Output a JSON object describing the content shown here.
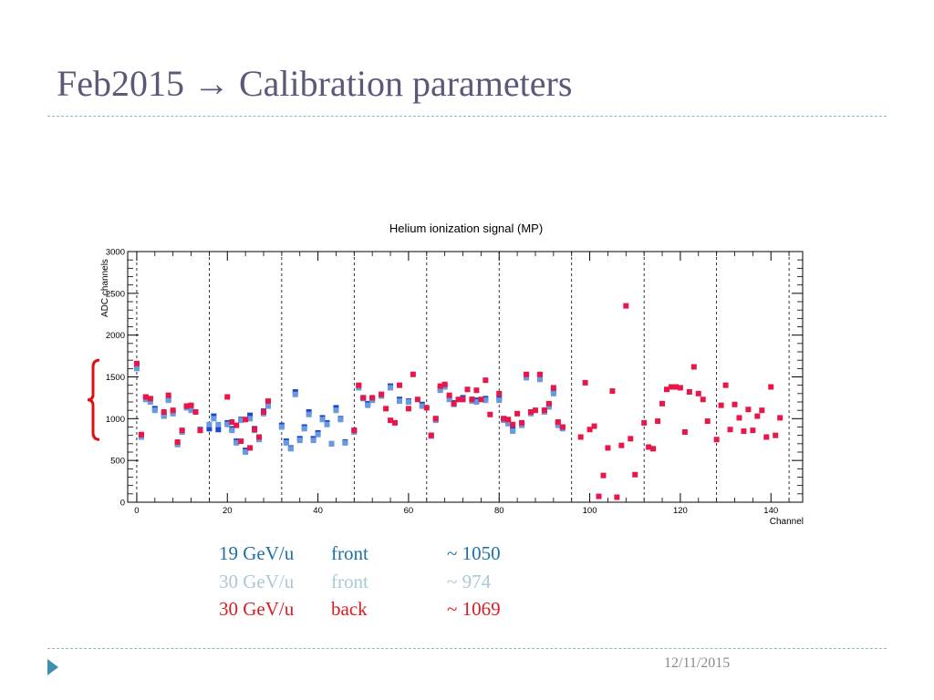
{
  "slide": {
    "title": "Feb2015 → Calibration parameters",
    "date": "12/11/2015"
  },
  "legend": [
    {
      "energy": "19 GeV/u",
      "side": "front",
      "value": "~ 1050",
      "color": "#1e6fa8"
    },
    {
      "energy": "30 GeV/u",
      "side": "front",
      "value": "~ 974",
      "color": "#a9c9d6"
    },
    {
      "energy": "30 GeV/u",
      "side": "back",
      "value": "~ 1069",
      "color": "#dd1a22"
    }
  ],
  "chart_data": {
    "type": "scatter",
    "title": "Helium ionization signal (MP)",
    "xlabel": "Channel",
    "ylabel": "ADC channels",
    "xlim": [
      -2,
      147
    ],
    "ylim": [
      0,
      3000
    ],
    "x_ticks": [
      0,
      20,
      40,
      60,
      80,
      100,
      120,
      140
    ],
    "y_ticks": [
      0,
      500,
      1000,
      1500,
      2000,
      2500,
      3000
    ],
    "dashed_vlines": [
      0,
      16,
      32,
      48,
      64,
      80,
      96,
      112,
      128,
      144
    ],
    "bracket_range": [
      750,
      1700
    ],
    "series": [
      {
        "color": "#1c46cc",
        "points": [
          [
            0,
            1650
          ],
          [
            1,
            800
          ],
          [
            2,
            1250
          ],
          [
            3,
            1230
          ],
          [
            4,
            1120
          ],
          [
            6,
            1050
          ],
          [
            7,
            1240
          ],
          [
            8,
            1080
          ],
          [
            9,
            700
          ],
          [
            10,
            850
          ],
          [
            11,
            1150
          ],
          [
            12,
            1130
          ],
          [
            14,
            870
          ],
          [
            16,
            880
          ],
          [
            17,
            1030
          ],
          [
            18,
            870
          ],
          [
            20,
            950
          ],
          [
            21,
            880
          ],
          [
            22,
            730
          ],
          [
            23,
            990
          ],
          [
            24,
            620
          ],
          [
            25,
            1040
          ],
          [
            26,
            880
          ],
          [
            27,
            770
          ],
          [
            28,
            1090
          ],
          [
            29,
            1190
          ],
          [
            32,
            920
          ],
          [
            33,
            730
          ],
          [
            34,
            650
          ],
          [
            35,
            1320
          ],
          [
            36,
            760
          ],
          [
            37,
            900
          ],
          [
            38,
            1080
          ],
          [
            39,
            760
          ],
          [
            40,
            830
          ],
          [
            41,
            1010
          ],
          [
            42,
            950
          ],
          [
            43,
            700
          ],
          [
            44,
            1130
          ],
          [
            45,
            1000
          ],
          [
            46,
            720
          ],
          [
            48,
            860
          ],
          [
            49,
            1390
          ],
          [
            50,
            1250
          ],
          [
            51,
            1180
          ],
          [
            52,
            1240
          ],
          [
            54,
            1290
          ],
          [
            56,
            1390
          ],
          [
            58,
            1230
          ],
          [
            60,
            1210
          ],
          [
            63,
            1170
          ],
          [
            65,
            800
          ],
          [
            66,
            1000
          ],
          [
            67,
            1360
          ],
          [
            68,
            1400
          ],
          [
            69,
            1250
          ],
          [
            70,
            1190
          ],
          [
            72,
            1250
          ],
          [
            74,
            1230
          ],
          [
            75,
            1220
          ],
          [
            77,
            1240
          ],
          [
            80,
            1250
          ],
          [
            81,
            1000
          ],
          [
            82,
            960
          ],
          [
            83,
            870
          ],
          [
            85,
            940
          ],
          [
            86,
            1520
          ],
          [
            87,
            1080
          ],
          [
            89,
            1500
          ],
          [
            90,
            1100
          ],
          [
            91,
            1160
          ],
          [
            92,
            1330
          ],
          [
            93,
            940
          ],
          [
            94,
            900
          ]
        ]
      },
      {
        "color": "#6a9ade",
        "points": [
          [
            0,
            1600
          ],
          [
            1,
            780
          ],
          [
            2,
            1230
          ],
          [
            3,
            1200
          ],
          [
            4,
            1100
          ],
          [
            6,
            1030
          ],
          [
            7,
            1220
          ],
          [
            8,
            1060
          ],
          [
            9,
            690
          ],
          [
            10,
            840
          ],
          [
            11,
            1130
          ],
          [
            12,
            1100
          ],
          [
            14,
            860
          ],
          [
            16,
            930
          ],
          [
            17,
            1000
          ],
          [
            18,
            930
          ],
          [
            20,
            930
          ],
          [
            21,
            860
          ],
          [
            22,
            710
          ],
          [
            23,
            980
          ],
          [
            24,
            600
          ],
          [
            25,
            1000
          ],
          [
            26,
            860
          ],
          [
            27,
            750
          ],
          [
            28,
            1060
          ],
          [
            29,
            1150
          ],
          [
            32,
            900
          ],
          [
            33,
            710
          ],
          [
            34,
            640
          ],
          [
            35,
            1290
          ],
          [
            36,
            740
          ],
          [
            37,
            880
          ],
          [
            38,
            1050
          ],
          [
            39,
            740
          ],
          [
            40,
            810
          ],
          [
            41,
            990
          ],
          [
            42,
            930
          ],
          [
            43,
            700
          ],
          [
            44,
            1100
          ],
          [
            45,
            990
          ],
          [
            46,
            710
          ],
          [
            48,
            840
          ],
          [
            49,
            1370
          ],
          [
            50,
            1240
          ],
          [
            51,
            1160
          ],
          [
            52,
            1220
          ],
          [
            54,
            1270
          ],
          [
            56,
            1370
          ],
          [
            58,
            1210
          ],
          [
            60,
            1200
          ],
          [
            63,
            1150
          ],
          [
            65,
            790
          ],
          [
            66,
            980
          ],
          [
            67,
            1340
          ],
          [
            68,
            1380
          ],
          [
            69,
            1230
          ],
          [
            70,
            1170
          ],
          [
            72,
            1230
          ],
          [
            74,
            1210
          ],
          [
            75,
            1200
          ],
          [
            77,
            1220
          ],
          [
            80,
            1220
          ],
          [
            81,
            980
          ],
          [
            82,
            940
          ],
          [
            83,
            850
          ],
          [
            85,
            920
          ],
          [
            86,
            1490
          ],
          [
            87,
            1060
          ],
          [
            89,
            1470
          ],
          [
            90,
            1080
          ],
          [
            91,
            1140
          ],
          [
            92,
            1300
          ],
          [
            93,
            920
          ],
          [
            94,
            880
          ]
        ]
      },
      {
        "color": "#e8174a",
        "points": [
          [
            0,
            1660
          ],
          [
            1,
            810
          ],
          [
            2,
            1260
          ],
          [
            3,
            1240
          ],
          [
            6,
            1080
          ],
          [
            7,
            1280
          ],
          [
            8,
            1100
          ],
          [
            9,
            720
          ],
          [
            10,
            860
          ],
          [
            11,
            1150
          ],
          [
            12,
            1160
          ],
          [
            13,
            1080
          ],
          [
            14,
            860
          ],
          [
            20,
            1260
          ],
          [
            21,
            960
          ],
          [
            22,
            920
          ],
          [
            23,
            730
          ],
          [
            24,
            990
          ],
          [
            25,
            650
          ],
          [
            26,
            870
          ],
          [
            27,
            780
          ],
          [
            28,
            1080
          ],
          [
            29,
            1210
          ],
          [
            48,
            860
          ],
          [
            49,
            1400
          ],
          [
            50,
            1250
          ],
          [
            52,
            1250
          ],
          [
            54,
            1290
          ],
          [
            55,
            1120
          ],
          [
            56,
            980
          ],
          [
            57,
            950
          ],
          [
            58,
            1400
          ],
          [
            60,
            1120
          ],
          [
            61,
            1530
          ],
          [
            62,
            1230
          ],
          [
            64,
            1130
          ],
          [
            65,
            800
          ],
          [
            66,
            1000
          ],
          [
            67,
            1390
          ],
          [
            68,
            1410
          ],
          [
            69,
            1280
          ],
          [
            70,
            1180
          ],
          [
            71,
            1230
          ],
          [
            72,
            1230
          ],
          [
            73,
            1350
          ],
          [
            74,
            1230
          ],
          [
            75,
            1340
          ],
          [
            76,
            1230
          ],
          [
            77,
            1460
          ],
          [
            78,
            1050
          ],
          [
            80,
            1300
          ],
          [
            81,
            1000
          ],
          [
            82,
            990
          ],
          [
            83,
            930
          ],
          [
            84,
            1060
          ],
          [
            85,
            950
          ],
          [
            86,
            1530
          ],
          [
            87,
            1080
          ],
          [
            88,
            1100
          ],
          [
            89,
            1530
          ],
          [
            90,
            1100
          ],
          [
            91,
            1180
          ],
          [
            92,
            1370
          ],
          [
            93,
            960
          ],
          [
            94,
            900
          ],
          [
            98,
            780
          ],
          [
            99,
            1430
          ],
          [
            100,
            870
          ],
          [
            101,
            910
          ],
          [
            102,
            70
          ],
          [
            103,
            320
          ],
          [
            104,
            650
          ],
          [
            105,
            1330
          ],
          [
            106,
            60
          ],
          [
            107,
            680
          ],
          [
            108,
            2350
          ],
          [
            109,
            760
          ],
          [
            110,
            330
          ],
          [
            112,
            950
          ],
          [
            113,
            660
          ],
          [
            114,
            640
          ],
          [
            115,
            970
          ],
          [
            116,
            1180
          ],
          [
            117,
            1350
          ],
          [
            118,
            1380
          ],
          [
            119,
            1380
          ],
          [
            120,
            1370
          ],
          [
            121,
            840
          ],
          [
            122,
            1320
          ],
          [
            123,
            1620
          ],
          [
            124,
            1300
          ],
          [
            125,
            1230
          ],
          [
            126,
            970
          ],
          [
            128,
            750
          ],
          [
            129,
            1160
          ],
          [
            130,
            1400
          ],
          [
            131,
            870
          ],
          [
            132,
            1170
          ],
          [
            133,
            1010
          ],
          [
            134,
            850
          ],
          [
            135,
            1110
          ],
          [
            136,
            860
          ],
          [
            137,
            1030
          ],
          [
            138,
            1100
          ],
          [
            139,
            780
          ],
          [
            140,
            1380
          ],
          [
            141,
            800
          ],
          [
            142,
            1010
          ]
        ]
      }
    ]
  }
}
